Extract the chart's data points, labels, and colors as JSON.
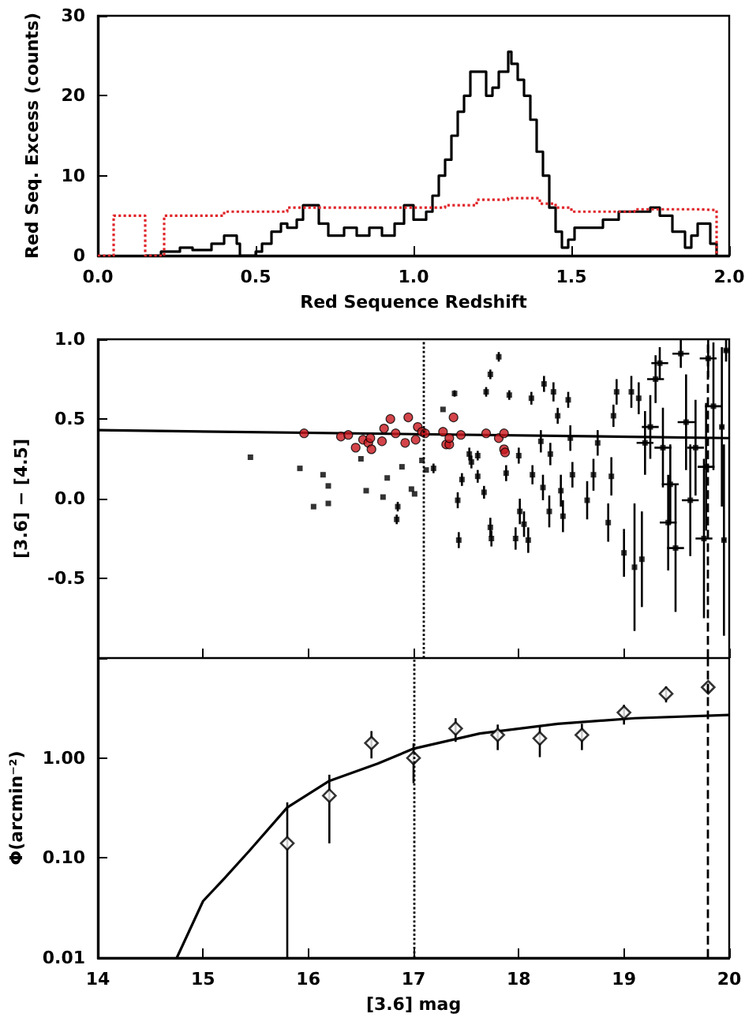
{
  "chart_data": [
    {
      "type": "step",
      "xlabel": "Red Sequence Redshift",
      "ylabel": "Red Seq. Excess (counts)",
      "xlim": [
        0,
        2
      ],
      "ylim": [
        0,
        30
      ],
      "xticks": [
        {
          "value": 0,
          "label": "0.0"
        },
        0.5,
        {
          "value": 1,
          "label": "1.0"
        },
        1.5,
        {
          "value": 2,
          "label": "2.0"
        }
      ],
      "yticks": [
        0,
        10,
        20,
        30
      ],
      "series": [
        {
          "color": "#000000",
          "x": [
            0.15,
            0.2,
            0.26,
            0.3,
            0.36,
            0.4,
            0.44,
            0.45,
            0.5,
            0.52,
            0.55,
            0.58,
            0.6,
            0.63,
            0.65,
            0.7,
            0.73,
            0.78,
            0.82,
            0.86,
            0.9,
            0.94,
            0.97,
            1.0,
            1.04,
            1.06,
            1.08,
            1.1,
            1.12,
            1.14,
            1.16,
            1.18,
            1.2,
            1.23,
            1.25,
            1.27,
            1.3,
            1.31,
            1.33,
            1.35,
            1.37,
            1.39,
            1.41,
            1.43,
            1.45,
            1.47,
            1.49,
            1.51,
            1.53,
            1.6,
            1.65,
            1.75,
            1.78,
            1.82,
            1.86,
            1.88,
            1.9,
            1.94,
            1.96
          ],
          "values": [
            0,
            0.5,
            1,
            0.7,
            1.5,
            2.5,
            1.5,
            0,
            0.5,
            1.5,
            3,
            4,
            3.5,
            4.5,
            6.3,
            4,
            2.5,
            3.5,
            2.5,
            3.5,
            2.5,
            4,
            6.3,
            4.5,
            5.5,
            7.5,
            10,
            12,
            15,
            18,
            20,
            23,
            23,
            20,
            21,
            23,
            25.5,
            24,
            22,
            20,
            17,
            13,
            10,
            6,
            3,
            1,
            2,
            3.5,
            3.5,
            4.5,
            5.5,
            6,
            5,
            3,
            1,
            2.5,
            4,
            1.5,
            0
          ]
        },
        {
          "color": "#e0262b",
          "line_style": "dotted",
          "x": [
            0,
            0.05,
            0.15,
            0.21,
            0.4,
            0.6,
            0.9,
            1.0,
            1.1,
            1.2,
            1.3,
            1.4,
            1.45,
            1.5,
            1.7,
            1.9,
            1.96
          ],
          "values": [
            0,
            5,
            0,
            5,
            5.5,
            6,
            6,
            6,
            6.3,
            7,
            7.2,
            6.5,
            6,
            5.5,
            5.8,
            5.7,
            0
          ]
        }
      ]
    },
    {
      "type": "scatter",
      "ylabel": "[3.6] − [4.5]",
      "xlim": [
        14,
        20
      ],
      "ylim": [
        -1,
        1
      ],
      "xticks": [
        14,
        15,
        16,
        17,
        18,
        19,
        20
      ],
      "yticks": [
        {
          "value": -1,
          "label": null
        },
        -0.5,
        {
          "value": 0,
          "label": "0.0"
        },
        0.5,
        {
          "value": 1,
          "label": "1.0"
        }
      ],
      "tick_labels": "y",
      "ref_lines": [
        {
          "axis": "x",
          "value": 17.1,
          "line_style": "dotted",
          "color": "#000000"
        },
        {
          "axis": "x",
          "value": 19.8,
          "line_style": "dashed",
          "color": "#000000"
        }
      ],
      "series": [
        {
          "color": "#000000",
          "marker": "square",
          "x": [
            15.45,
            15.92,
            16.05,
            16.14,
            16.19,
            16.19,
            16.5,
            16.55,
            16.71,
            16.75,
            16.85,
            16.84,
            16.89,
            16.98,
            17.01,
            17.08,
            17.12,
            17.19,
            17.39,
            17.28,
            17.42,
            17.43,
            17.46,
            17.53,
            17.55,
            17.61,
            17.61,
            17.67,
            17.69,
            17.73,
            17.73,
            17.74,
            17.81,
            17.88,
            17.91,
            17.97,
            18.0,
            18.01,
            18.05,
            18.09,
            18.12,
            18.13,
            18.21,
            18.23,
            18.24,
            18.29,
            18.3,
            18.33,
            18.37,
            18.4,
            18.42,
            18.47,
            18.49,
            18.51,
            18.65,
            18.71,
            18.75,
            18.85,
            18.88,
            18.9,
            18.93,
            19.0,
            19.07,
            19.1,
            19.14,
            19.17
          ],
          "values": [
            0.26,
            0.19,
            -0.05,
            0.15,
            0.08,
            -0.03,
            0.25,
            0.05,
            0.01,
            0.13,
            -0.05,
            -0.13,
            0.2,
            0.06,
            0.03,
            0.24,
            0.18,
            0.19,
            0.66,
            0.56,
            -0.01,
            -0.26,
            0.12,
            0.28,
            0.23,
            0.27,
            0.14,
            0.04,
            0.67,
            0.78,
            -0.18,
            -0.25,
            0.89,
            0.16,
            0.65,
            -0.25,
            0.27,
            -0.08,
            -0.16,
            -0.26,
            0.63,
            0.15,
            0.36,
            0.07,
            0.72,
            -0.08,
            0.28,
            0.67,
            0.52,
            0.05,
            -0.11,
            0.62,
            0.38,
            0.15,
            -0.01,
            0.15,
            0.35,
            -0.15,
            0.14,
            0.52,
            0.67,
            -0.34,
            0.67,
            -0.43,
            0.63,
            -0.38
          ],
          "errors": [
            null,
            null,
            null,
            null,
            null,
            null,
            null,
            null,
            null,
            null,
            0.03,
            0.03,
            null,
            null,
            null,
            null,
            null,
            0.03,
            0.02,
            null,
            0.05,
            0.05,
            0.04,
            0.04,
            0.04,
            0.03,
            0.04,
            0.04,
            0.03,
            0.03,
            0.06,
            0.05,
            0.03,
            0.05,
            0.03,
            0.07,
            0.05,
            0.08,
            0.08,
            0.08,
            0.04,
            0.06,
            0.07,
            0.08,
            0.05,
            0.1,
            0.07,
            0.06,
            0.05,
            0.1,
            0.1,
            0.05,
            0.08,
            0.08,
            0.12,
            0.1,
            0.08,
            0.12,
            0.12,
            0.07,
            0.08,
            0.15,
            0.1,
            0.4,
            0.1,
            0.3
          ]
        },
        {
          "color": "#000000",
          "marker": "square",
          "x": [
            19.2,
            19.25,
            19.3,
            19.34,
            19.37,
            19.42,
            19.44,
            19.49,
            19.54,
            19.59,
            19.63,
            19.68,
            19.76,
            19.78,
            19.8,
            19.85,
            19.93,
            19.95,
            19.97
          ],
          "values": [
            0.35,
            0.45,
            0.75,
            0.85,
            0.32,
            -0.15,
            0.09,
            -0.31,
            0.91,
            0.48,
            -0.01,
            0.32,
            -0.25,
            0.2,
            0.88,
            0.58,
            0.45,
            -0.26,
            0.93
          ],
          "errors": [
            0.2,
            0.2,
            0.15,
            0.1,
            0.25,
            0.3,
            0.25,
            0.4,
            0.09,
            0.3,
            0.35,
            0.3,
            0.5,
            0.4,
            0.12,
            0.4,
            0.5,
            0.6,
            0.07
          ],
          "xerrors": [
            0.08,
            0.08,
            0.08,
            0.08,
            0.08,
            0.08,
            0.08,
            0.08,
            0.08,
            0.08,
            0.08,
            0.08,
            0.08,
            0.08,
            0.08,
            0.08,
            0.02,
            0.02,
            0.02
          ]
        },
        {
          "type": "line",
          "color": "#000000",
          "marker": "none",
          "x": [
            14,
            20
          ],
          "values": [
            0.43,
            0.38
          ]
        },
        {
          "color": "#c8161d",
          "marker": "circle",
          "x": [
            15.96,
            16.31,
            16.38,
            16.45,
            16.52,
            16.57,
            16.59,
            16.6,
            16.7,
            16.72,
            16.78,
            16.83,
            16.92,
            16.95,
            17.02,
            17.04,
            17.08,
            17.11,
            17.28,
            17.31,
            17.34,
            17.34,
            17.38,
            17.45,
            17.69,
            17.81,
            17.86,
            17.86,
            17.87
          ],
          "values": [
            0.41,
            0.39,
            0.4,
            0.32,
            0.37,
            0.35,
            0.38,
            0.31,
            0.36,
            0.44,
            0.5,
            0.41,
            0.35,
            0.51,
            0.37,
            0.45,
            0.42,
            0.41,
            0.42,
            0.34,
            0.34,
            0.38,
            0.51,
            0.4,
            0.41,
            0.38,
            0.41,
            0.31,
            0.29
          ]
        }
      ]
    },
    {
      "type": "scatter",
      "xlabel": "[3.6] mag",
      "ylabel": "Φ(arcmin⁻²)",
      "log": true,
      "xlim": [
        14,
        20
      ],
      "ylim": [
        0.01,
        10
      ],
      "xticks": [
        14,
        15,
        16,
        17,
        18,
        19,
        20
      ],
      "yticks": [
        0.01,
        {
          "value": 0.1,
          "label": "0.10"
        },
        {
          "value": 1,
          "label": "1.00"
        },
        {
          "value": 10,
          "label": null
        }
      ],
      "ref_lines": [
        {
          "axis": "x",
          "value": 17.0,
          "line_style": "dotted",
          "color": "#000000"
        },
        {
          "axis": "x",
          "value": 19.8,
          "line_style": "dashed",
          "color": "#000000"
        }
      ],
      "series": [
        {
          "type": "line",
          "color": "#000000",
          "marker": "none",
          "x": [
            14.75,
            15.0,
            15.2,
            15.44,
            15.8,
            16.2,
            16.66,
            17.0,
            17.63,
            18.37,
            19.1,
            20
          ],
          "values": [
            0.01,
            0.037,
            0.062,
            0.118,
            0.32,
            0.59,
            0.88,
            1.24,
            1.76,
            2.2,
            2.5,
            2.7
          ]
        },
        {
          "color": "#000000",
          "marker": "diamond",
          "x": [
            15.8,
            16.2,
            16.6,
            17.0,
            17.4,
            17.8,
            18.2,
            18.6,
            19.0,
            19.4,
            19.8
          ],
          "values": [
            0.14,
            0.42,
            1.41,
            1.0,
            1.97,
            1.7,
            1.57,
            1.7,
            2.85,
            4.4,
            5.1
          ],
          "errors": [
            [
              0.01,
              0.36
            ],
            [
              0.14,
              0.68
            ],
            [
              0.99,
              1.86
            ],
            [
              0.56,
              1.4
            ],
            [
              1.45,
              2.5
            ],
            [
              1.2,
              2.16
            ],
            [
              1.02,
              2.09
            ],
            [
              1.2,
              2.2
            ],
            [
              2.16,
              3.4
            ],
            [
              3.6,
              5.2
            ],
            [
              4.4,
              5.6
            ]
          ]
        }
      ]
    }
  ]
}
